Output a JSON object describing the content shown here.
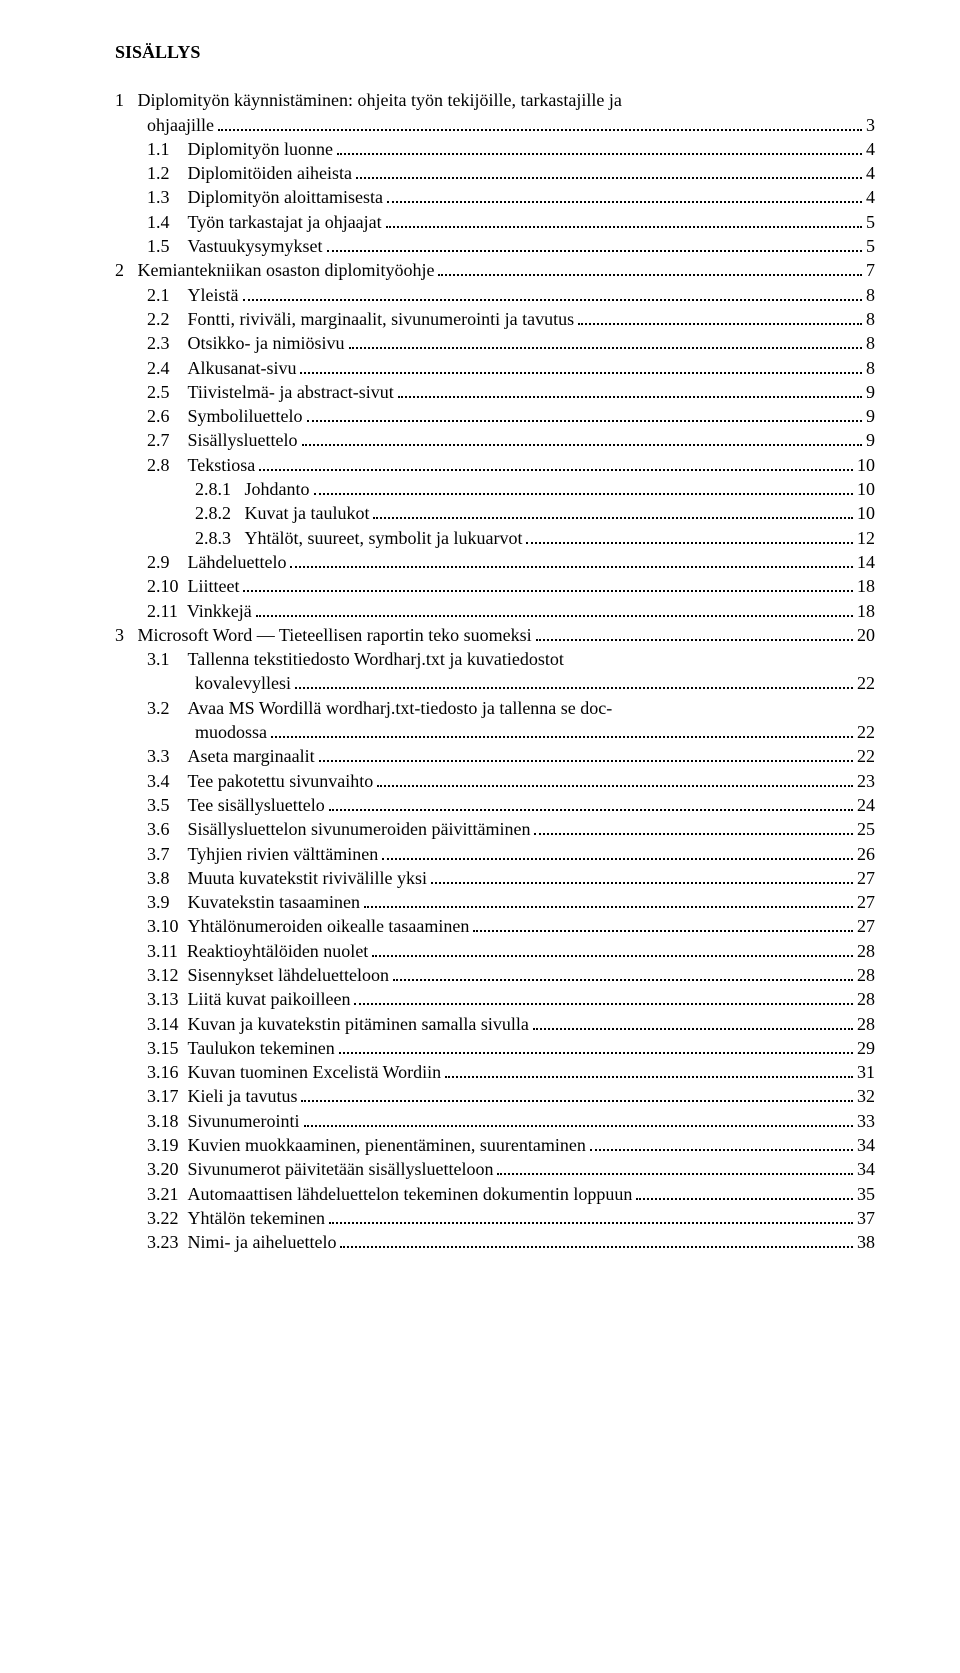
{
  "title": "SISÄLLYS",
  "toc": [
    {
      "indent": 0,
      "num": "1",
      "label": "Diplomityön käynnistäminen: ohjeita työn tekijöille, tarkastajille ja",
      "page": "",
      "nodots": true
    },
    {
      "indent": 0,
      "num": "",
      "label": "ohjaajille",
      "page": "3",
      "cont": true
    },
    {
      "indent": 1,
      "num": "1.1",
      "label": "Diplomityön luonne",
      "page": "4"
    },
    {
      "indent": 1,
      "num": "1.2",
      "label": "Diplomitöiden aiheista",
      "page": "4"
    },
    {
      "indent": 1,
      "num": "1.3",
      "label": "Diplomityön aloittamisesta",
      "page": "4"
    },
    {
      "indent": 1,
      "num": "1.4",
      "label": "Työn tarkastajat ja ohjaajat",
      "page": "5"
    },
    {
      "indent": 1,
      "num": "1.5",
      "label": "Vastuukysymykset",
      "page": "5"
    },
    {
      "indent": 0,
      "num": "2",
      "label": "Kemiantekniikan osaston diplomityöohje",
      "page": "7"
    },
    {
      "indent": 1,
      "num": "2.1",
      "label": "Yleistä",
      "page": "8"
    },
    {
      "indent": 1,
      "num": "2.2",
      "label": "Fontti, riviväli, marginaalit, sivunumerointi ja tavutus",
      "page": "8"
    },
    {
      "indent": 1,
      "num": "2.3",
      "label": "Otsikko- ja nimiösivu",
      "page": "8"
    },
    {
      "indent": 1,
      "num": "2.4",
      "label": "Alkusanat-sivu",
      "page": "8"
    },
    {
      "indent": 1,
      "num": "2.5",
      "label": "Tiivistelmä- ja abstract-sivut",
      "page": "9"
    },
    {
      "indent": 1,
      "num": "2.6",
      "label": "Symboliluettelo",
      "page": "9"
    },
    {
      "indent": 1,
      "num": "2.7",
      "label": "Sisällysluettelo",
      "page": "9"
    },
    {
      "indent": 1,
      "num": "2.8",
      "label": "Tekstiosa",
      "page": "10"
    },
    {
      "indent": 2,
      "num": "2.8.1",
      "label": "Johdanto",
      "page": "10"
    },
    {
      "indent": 2,
      "num": "2.8.2",
      "label": "Kuvat ja taulukot",
      "page": "10"
    },
    {
      "indent": 2,
      "num": "2.8.3",
      "label": "Yhtälöt, suureet, symbolit ja lukuarvot",
      "page": "12"
    },
    {
      "indent": 1,
      "num": "2.9",
      "label": "Lähdeluettelo",
      "page": "14"
    },
    {
      "indent": 1,
      "num": "2.10",
      "label": "Liitteet",
      "page": "18"
    },
    {
      "indent": 1,
      "num": "2.11",
      "label": "Vinkkejä",
      "page": "18"
    },
    {
      "indent": 0,
      "num": "3",
      "label": "Microsoft Word — Tieteellisen raportin teko suomeksi",
      "page": "20"
    },
    {
      "indent": 1,
      "num": "3.1",
      "label": "Tallenna   tekstitiedosto   Wordharj.txt   ja   kuvatiedostot",
      "page": "",
      "nodots": true
    },
    {
      "indent": 1,
      "num": "",
      "label": "kovalevyllesi",
      "page": "22",
      "cont": true
    },
    {
      "indent": 1,
      "num": "3.2",
      "label": "Avaa MS Wordillä wordharj.txt-tiedosto ja tallenna se doc-",
      "page": "",
      "nodots": true
    },
    {
      "indent": 1,
      "num": "",
      "label": "muodossa",
      "page": "22",
      "cont": true
    },
    {
      "indent": 1,
      "num": "3.3",
      "label": "Aseta marginaalit",
      "page": "22"
    },
    {
      "indent": 1,
      "num": "3.4",
      "label": "Tee pakotettu sivunvaihto",
      "page": "23"
    },
    {
      "indent": 1,
      "num": "3.5",
      "label": "Tee sisällysluettelo",
      "page": "24"
    },
    {
      "indent": 1,
      "num": "3.6",
      "label": "Sisällysluettelon sivunumeroiden päivittäminen",
      "page": "25"
    },
    {
      "indent": 1,
      "num": "3.7",
      "label": "Tyhjien rivien välttäminen",
      "page": "26"
    },
    {
      "indent": 1,
      "num": "3.8",
      "label": "Muuta kuvatekstit rivivälille yksi",
      "page": "27"
    },
    {
      "indent": 1,
      "num": "3.9",
      "label": "Kuvatekstin tasaaminen",
      "page": "27"
    },
    {
      "indent": 1,
      "num": "3.10",
      "label": "Yhtälönumeroiden oikealle tasaaminen",
      "page": "27"
    },
    {
      "indent": 1,
      "num": "3.11",
      "label": "Reaktioyhtälöiden nuolet",
      "page": "28"
    },
    {
      "indent": 1,
      "num": "3.12",
      "label": "Sisennykset lähdeluetteloon",
      "page": "28"
    },
    {
      "indent": 1,
      "num": "3.13",
      "label": "Liitä kuvat paikoilleen",
      "page": "28"
    },
    {
      "indent": 1,
      "num": "3.14",
      "label": "Kuvan ja kuvatekstin pitäminen samalla sivulla",
      "page": "28"
    },
    {
      "indent": 1,
      "num": "3.15",
      "label": "Taulukon tekeminen",
      "page": "29"
    },
    {
      "indent": 1,
      "num": "3.16",
      "label": "Kuvan tuominen Excelistä Wordiin",
      "page": "31"
    },
    {
      "indent": 1,
      "num": "3.17",
      "label": "Kieli ja tavutus",
      "page": "32"
    },
    {
      "indent": 1,
      "num": "3.18",
      "label": "Sivunumerointi",
      "page": "33"
    },
    {
      "indent": 1,
      "num": "3.19",
      "label": "Kuvien muokkaaminen, pienentäminen, suurentaminen",
      "page": "34"
    },
    {
      "indent": 1,
      "num": "3.20",
      "label": "Sivunumerot päivitetään sisällysluetteloon",
      "page": "34"
    },
    {
      "indent": 1,
      "num": "3.21",
      "label": "Automaattisen lähdeluettelon tekeminen dokumentin loppuun",
      "page": "35"
    },
    {
      "indent": 1,
      "num": "3.22",
      "label": "Yhtälön tekeminen",
      "page": "37"
    },
    {
      "indent": 1,
      "num": "3.23",
      "label": "Nimi- ja aiheluettelo",
      "page": "38"
    }
  ]
}
